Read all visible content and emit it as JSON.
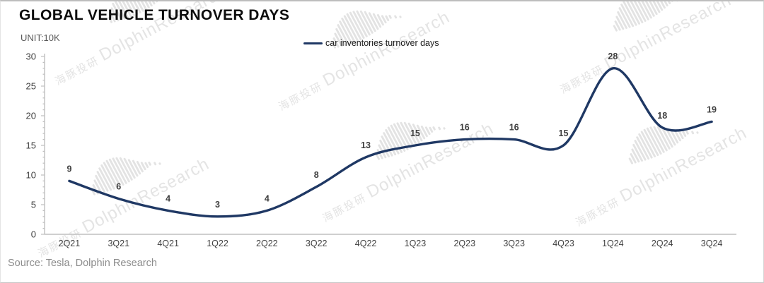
{
  "title": "GLOBAL VEHICLE TURNOVER DAYS",
  "unit_label": "UNIT:10K",
  "legend": {
    "label": "car inventories turnover days",
    "line_color": "#1f3864"
  },
  "source": "Source: Tesla, Dolphin Research",
  "watermark": {
    "zh": "海豚投研",
    "en": "DolphinResearch"
  },
  "chart_data": {
    "type": "line",
    "title": "GLOBAL VEHICLE TURNOVER DAYS",
    "unit": "UNIT:10K",
    "categories": [
      "2Q21",
      "3Q21",
      "4Q21",
      "1Q22",
      "2Q22",
      "3Q22",
      "4Q22",
      "1Q23",
      "2Q23",
      "3Q23",
      "4Q23",
      "1Q24",
      "2Q24",
      "3Q24"
    ],
    "series": [
      {
        "name": "car inventories turnover days",
        "values": [
          9,
          6,
          4,
          3,
          4,
          8,
          13,
          15,
          16,
          16,
          15,
          28,
          18,
          19
        ],
        "color": "#1f3864"
      }
    ],
    "data_labels": true,
    "smooth": true,
    "xlabel": "",
    "ylabel": "",
    "ylim": [
      0,
      30
    ],
    "ytick_step": 5,
    "yticks": [
      0,
      5,
      10,
      15,
      20,
      25,
      30
    ],
    "grid": false,
    "legend_position": "top-center",
    "axis_color": "#bfbfbf",
    "tick_label_color": "#404040"
  }
}
